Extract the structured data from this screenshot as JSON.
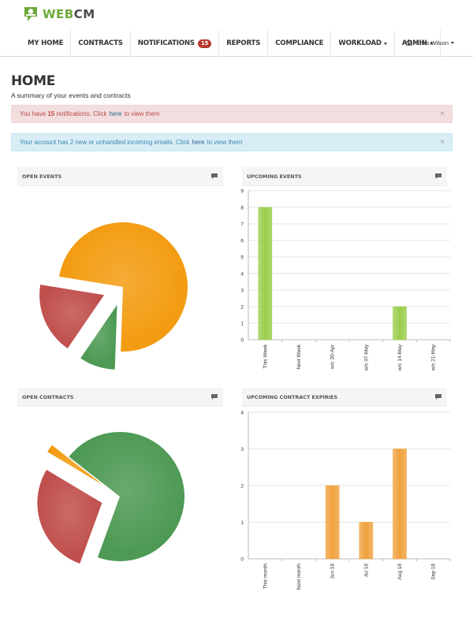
{
  "app": {
    "logo_part1": "WEB",
    "logo_part2": "CM"
  },
  "nav": {
    "items": [
      {
        "label": "My Home"
      },
      {
        "label": "Contracts"
      },
      {
        "label": "Notifications",
        "badge": "15"
      },
      {
        "label": "Reports"
      },
      {
        "label": "Compliance"
      },
      {
        "label": "Workload",
        "dropdown": true
      },
      {
        "label": "Admin",
        "dropdown": true
      }
    ],
    "user_name": "Chris Wilson"
  },
  "page": {
    "title": "HOME",
    "subtitle": "A summary of your events and contracts"
  },
  "alerts": {
    "notifications": {
      "prefix": "You have",
      "count": "15",
      "middle": "notifications. Click",
      "link": "here",
      "suffix": "to view them"
    },
    "emails": {
      "prefix": "Your account has 2 new or unhandled incoming emails. Click",
      "link": "here",
      "suffix": "to view them"
    },
    "close_glyph": "×"
  },
  "panels": {
    "open_events": "Open Events",
    "upcoming_events": "Upcoming Events",
    "open_contracts": "Open Contracts",
    "upcoming_contract_expiries": "Upcoming Contract Expiries"
  },
  "colors": {
    "red": "#c0504d",
    "green": "#4e9a55",
    "orange": "#f39c12",
    "bar_green": "#9acd4c",
    "bar_orange": "#f0a13c"
  },
  "chart_data": [
    {
      "type": "pie",
      "panel": "Open Events",
      "slices": [
        {
          "color": "#c0504d",
          "value": 0.18
        },
        {
          "color": "#f39c12",
          "value": 0.73
        },
        {
          "color": "#4e9a55",
          "value": 0.09
        }
      ]
    },
    {
      "type": "bar",
      "panel": "Upcoming Events",
      "categories": [
        "This Week",
        "Next Week",
        "w/c 30-Apr",
        "w/c 07-May",
        "w/c 14-May",
        "w/c 21-May"
      ],
      "values": [
        8,
        0,
        0,
        0,
        2,
        0
      ],
      "ylim": [
        0,
        9
      ],
      "yticks": [
        0,
        1,
        2,
        3,
        4,
        5,
        6,
        7,
        8,
        9
      ],
      "color": "#9acd4c"
    },
    {
      "type": "pie",
      "panel": "Open Contracts",
      "slices": [
        {
          "color": "#c0504d",
          "value": 0.28
        },
        {
          "color": "#f39c12",
          "value": 0.02
        },
        {
          "color": "#4e9a55",
          "value": 0.7
        }
      ]
    },
    {
      "type": "bar",
      "panel": "Upcoming Contract Expiries",
      "categories": [
        "This month",
        "Next month",
        "Jun 18",
        "Jul 18",
        "Aug 18",
        "Sep 18"
      ],
      "values": [
        0,
        0,
        2,
        1,
        3,
        0
      ],
      "ylim": [
        0,
        4
      ],
      "yticks": [
        0,
        1,
        2,
        3,
        4
      ],
      "color": "#f0a13c"
    }
  ]
}
